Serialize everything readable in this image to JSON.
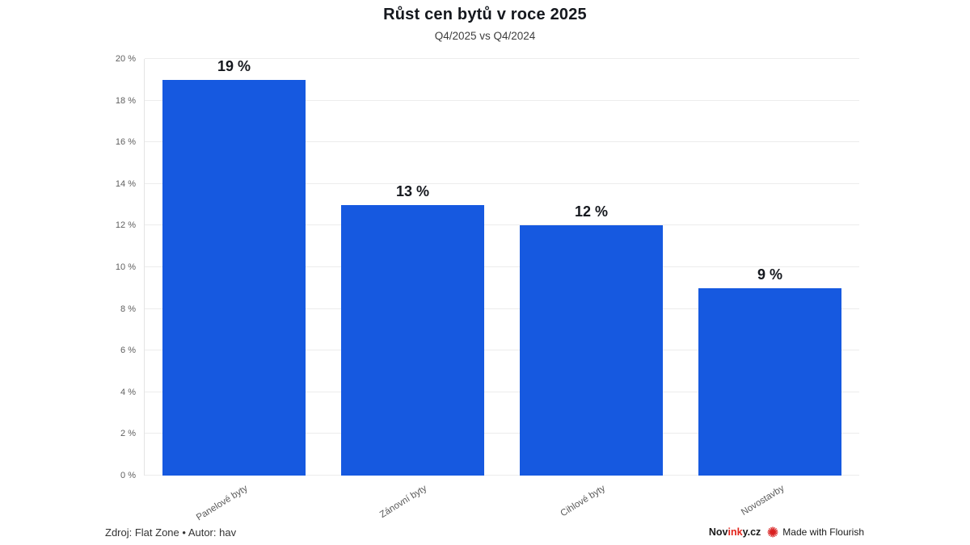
{
  "header": {
    "title": "Růst cen bytů v roce 2025",
    "subtitle": "Q4/2025 vs Q4/2024"
  },
  "chart_data": {
    "type": "bar",
    "title": "Růst cen bytů v roce 2025",
    "subtitle": "Q4/2025 vs Q4/2024",
    "categories": [
      "Panelové byty",
      "Zánovní byty",
      "Cihlové byty",
      "Novostavby"
    ],
    "values": [
      19,
      13,
      12,
      9
    ],
    "value_labels": [
      "19 %",
      "13 %",
      "12 %",
      "9 %"
    ],
    "ylim": [
      0,
      20
    ],
    "yticks": [
      {
        "value": 0,
        "label": "0 %"
      },
      {
        "value": 2,
        "label": "2 %"
      },
      {
        "value": 4,
        "label": "4 %"
      },
      {
        "value": 6,
        "label": "6 %"
      },
      {
        "value": 8,
        "label": "8 %"
      },
      {
        "value": 10,
        "label": "10 %"
      },
      {
        "value": 12,
        "label": "12 %"
      },
      {
        "value": 14,
        "label": "14 %"
      },
      {
        "value": 16,
        "label": "16 %"
      },
      {
        "value": 18,
        "label": "18 %"
      },
      {
        "value": 20,
        "label": "20 %"
      }
    ],
    "grid": true,
    "legend": "none",
    "bar_color": "#1659e0"
  },
  "footer": {
    "source": "Zdroj: Flat Zone • Autor: hav",
    "brand": {
      "part1": "Nov",
      "part2": "ink",
      "part3": "y.cz"
    },
    "made_with": "Made with Flourish"
  },
  "colors": {
    "bar_blue": "#1659e0",
    "brand_red": "#e2231a",
    "grid": "#ececec",
    "text_dark": "#15181e",
    "text_muted": "#5f5f5f"
  }
}
